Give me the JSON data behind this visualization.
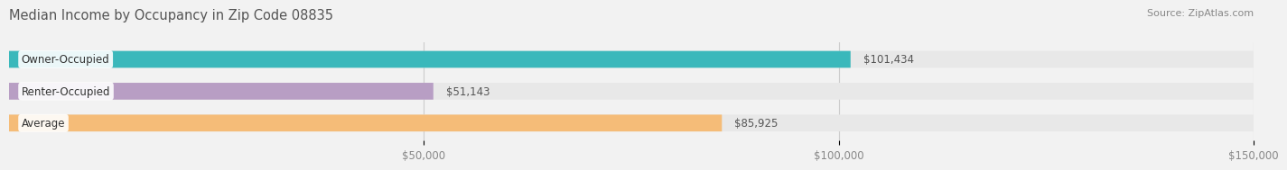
{
  "title": "Median Income by Occupancy in Zip Code 08835",
  "source": "Source: ZipAtlas.com",
  "categories": [
    "Owner-Occupied",
    "Renter-Occupied",
    "Average"
  ],
  "values": [
    101434,
    51143,
    85925
  ],
  "value_labels": [
    "$101,434",
    "$51,143",
    "$85,925"
  ],
  "bar_colors": [
    "#3ab8bb",
    "#b89ec4",
    "#f5bc78"
  ],
  "bar_bg_color": "#e8e8e8",
  "xlim": [
    0,
    150000
  ],
  "xtick_values": [
    50000,
    100000,
    150000
  ],
  "xtick_labels": [
    "$50,000",
    "$100,000",
    "$150,000"
  ],
  "title_fontsize": 10.5,
  "label_fontsize": 8.5,
  "value_fontsize": 8.5,
  "source_fontsize": 8,
  "bar_height": 0.52,
  "background_color": "#f2f2f2"
}
